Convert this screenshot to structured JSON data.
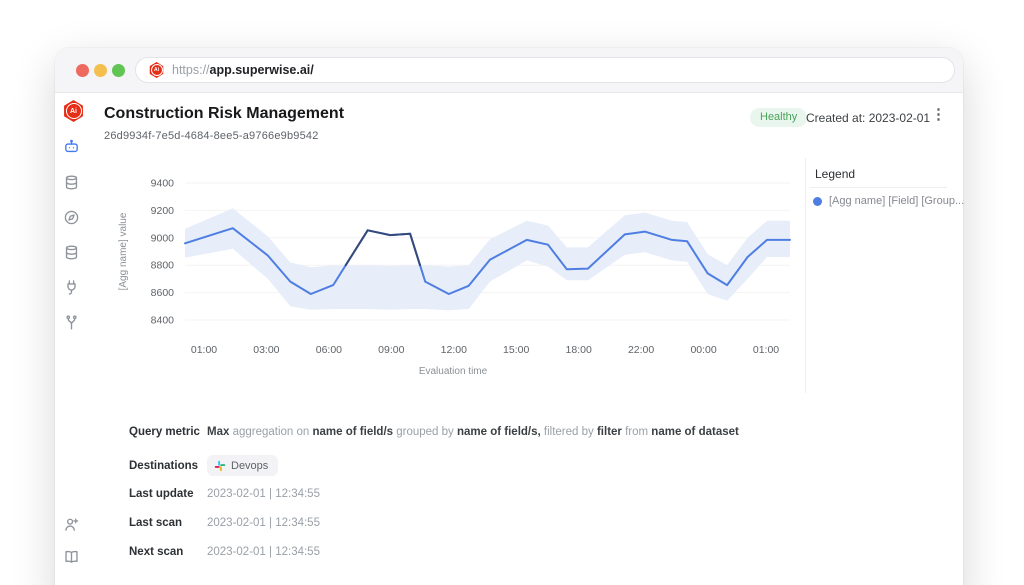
{
  "browser": {
    "traffic_lights": [
      "close",
      "minimize",
      "zoom"
    ],
    "url": {
      "scheme": "https://",
      "domain": "app.superwise.ai",
      "path": "/"
    },
    "favicon": "superwise-logo"
  },
  "app": {
    "logo_text": "Ai",
    "header": {
      "title": "Construction Risk Management",
      "uuid": "26d9934f-7e5d-4684-8ee5-a9766e9b9542",
      "status_badge": "Healthy",
      "created_at": "Created at: 2023-02-01",
      "kebab": "⋮"
    },
    "sidebar": {
      "nav_icons": [
        {
          "name": "bot-icon",
          "active": true
        },
        {
          "name": "database-icon",
          "active": false
        },
        {
          "name": "compass-icon",
          "active": false
        },
        {
          "name": "database2-icon",
          "active": false
        },
        {
          "name": "plug-icon",
          "active": false
        },
        {
          "name": "branch-icon",
          "active": false
        }
      ],
      "bottom_icons": [
        {
          "name": "invite-user-icon"
        },
        {
          "name": "docs-book-icon"
        }
      ]
    },
    "legend": {
      "title": "Legend",
      "items": [
        {
          "label": "[Agg name] [Field] [Group..."
        }
      ]
    },
    "meta": {
      "query_metric": {
        "label": "Query metric",
        "segments": [
          {
            "text": "Max ",
            "bold": true
          },
          {
            "text": "aggregation on ",
            "bold": false
          },
          {
            "text": "name of field/s ",
            "bold": true
          },
          {
            "text": "grouped by ",
            "bold": false
          },
          {
            "text": "name of field/s, ",
            "bold": true
          },
          {
            "text": "filtered by ",
            "bold": false
          },
          {
            "text": "filter ",
            "bold": true
          },
          {
            "text": "from ",
            "bold": false
          },
          {
            "text": "name of dataset",
            "bold": true
          }
        ]
      },
      "destinations": {
        "label": "Destinations",
        "chips": [
          "Devops"
        ],
        "chip_icon": "slack-icon"
      },
      "timestamps": [
        {
          "label": "Last update",
          "value": "2023-02-01 | 12:34:55"
        },
        {
          "label": "Last scan",
          "value": "2023-02-01 | 12:34:55"
        },
        {
          "label": "Next scan",
          "value": "2023-02-01 | 12:34:55"
        }
      ]
    }
  },
  "chart_data": {
    "type": "line",
    "title": "",
    "xlabel": "Evaluation time",
    "ylabel": "[Agg name] value",
    "ylim": [
      8400,
      9400
    ],
    "yticks": [
      9400,
      9200,
      9000,
      8800,
      8600,
      8400
    ],
    "xticks": [
      "01:00",
      "03:00",
      "06:00",
      "09:00",
      "12:00",
      "15:00",
      "18:00",
      "22:00",
      "00:00",
      "01:00"
    ],
    "grid": "horizontal",
    "legend_position": "right",
    "series": [
      {
        "name": "[Agg name] [Field] [Group...",
        "x_frac": [
          0,
          0.079,
          0.137,
          0.174,
          0.208,
          0.245,
          0.302,
          0.339,
          0.372,
          0.397,
          0.436,
          0.469,
          0.504,
          0.565,
          0.6,
          0.631,
          0.666,
          0.727,
          0.76,
          0.805,
          0.83,
          0.864,
          0.896,
          0.93,
          0.962,
          1
        ],
        "values": [
          8960,
          9070,
          8870,
          8680,
          8590,
          8655,
          9055,
          9020,
          9030,
          8680,
          8590,
          8650,
          8840,
          8985,
          8950,
          8770,
          8775,
          9025,
          9045,
          8985,
          8975,
          8740,
          8655,
          8860,
          8985,
          8985
        ]
      }
    ],
    "band": {
      "upper": [
        9065,
        9215,
        9010,
        8820,
        8785,
        8800,
        8800,
        8795,
        8800,
        8800,
        8790,
        8800,
        8990,
        9125,
        9090,
        8930,
        8930,
        9165,
        9185,
        9125,
        9115,
        8880,
        8800,
        9000,
        9125,
        9125
      ],
      "lower": [
        8855,
        8920,
        8700,
        8500,
        8475,
        8480,
        8480,
        8475,
        8480,
        8480,
        8470,
        8480,
        8680,
        8835,
        8790,
        8690,
        8690,
        8875,
        8895,
        8835,
        8825,
        8590,
        8540,
        8700,
        8860,
        8860
      ]
    },
    "colors": {
      "line": "#4f7ee3",
      "anomaly": "#35497c",
      "band": "#e7edf9",
      "grid": "#f6f2f3"
    }
  }
}
